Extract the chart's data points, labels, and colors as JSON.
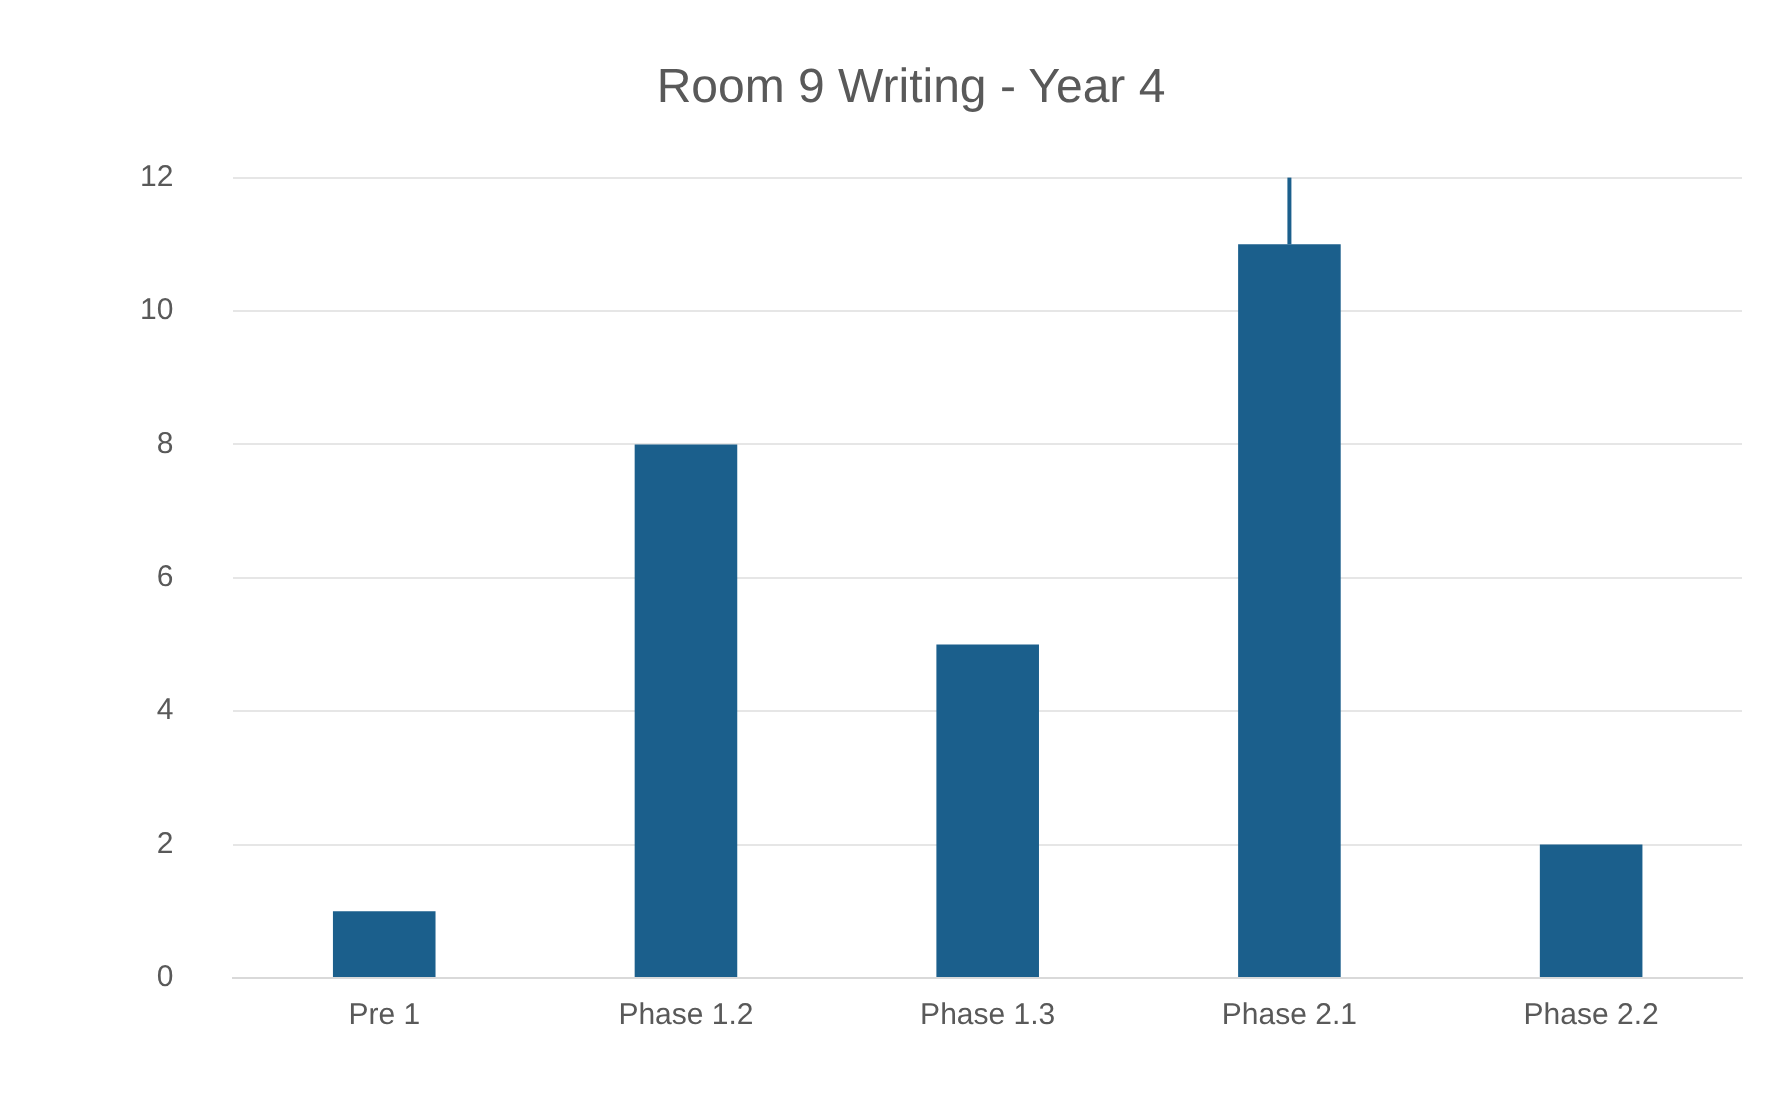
{
  "chart_data": {
    "type": "bar",
    "title": "Room 9 Writing - Year 4",
    "categories": [
      "Pre 1",
      "Phase 1.2",
      "Phase 1.3",
      "Phase 2.1",
      "Phase 2.2"
    ],
    "values": [
      1,
      8,
      5,
      11,
      2
    ],
    "errors": [
      null,
      null,
      null,
      [
        11,
        12
      ],
      null
    ],
    "color": "#1b5f8c",
    "ylim": [
      0,
      12
    ],
    "yticks": [
      0,
      2,
      4,
      6,
      8,
      10,
      12
    ],
    "grid": "y",
    "legend": false
  }
}
